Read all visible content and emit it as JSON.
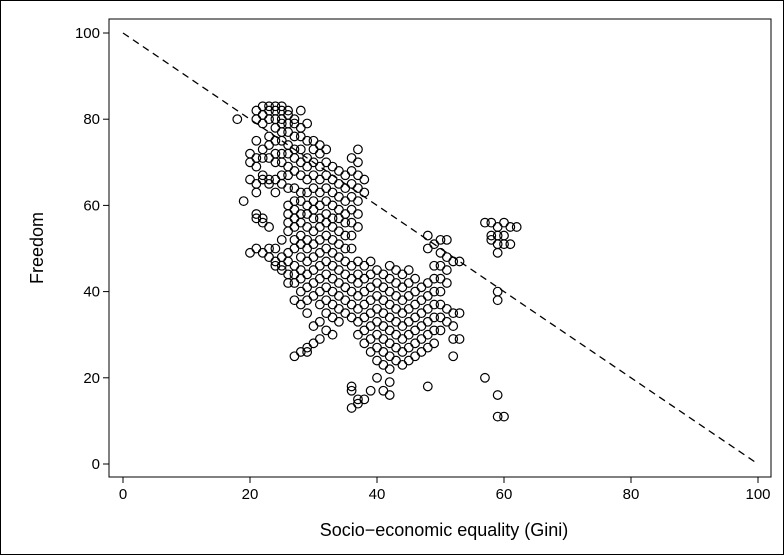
{
  "chart_data": {
    "type": "scatter",
    "title": "",
    "xlabel": "Socio−economic equality (Gini)",
    "ylabel": "Freedom",
    "xlim": [
      0,
      100
    ],
    "ylim": [
      0,
      100
    ],
    "x_ticks": [
      "0",
      "20",
      "40",
      "60",
      "80",
      "100"
    ],
    "y_ticks": [
      "0",
      "20",
      "40",
      "60",
      "80",
      "100"
    ],
    "grid": false,
    "legend": "none",
    "marker": "hollow-circle",
    "colors": {
      "points": "#000000",
      "reference_line": "#000000",
      "background": "#ffffff"
    },
    "reference_line": {
      "style": "dashed",
      "from": [
        0,
        100
      ],
      "to": [
        100,
        0
      ]
    },
    "points": [
      [
        18,
        80
      ],
      [
        19,
        61
      ],
      [
        20,
        72
      ],
      [
        20,
        70
      ],
      [
        20,
        66
      ],
      [
        20,
        49
      ],
      [
        21,
        82
      ],
      [
        21,
        80
      ],
      [
        21,
        75
      ],
      [
        21,
        71
      ],
      [
        21,
        69
      ],
      [
        21,
        65
      ],
      [
        21,
        63
      ],
      [
        21,
        58
      ],
      [
        21,
        57
      ],
      [
        21,
        50
      ],
      [
        22,
        83
      ],
      [
        22,
        81
      ],
      [
        22,
        79
      ],
      [
        22,
        73
      ],
      [
        22,
        71
      ],
      [
        22,
        67
      ],
      [
        22,
        66
      ],
      [
        22,
        57
      ],
      [
        22,
        56
      ],
      [
        22,
        49
      ],
      [
        23,
        83
      ],
      [
        23,
        82
      ],
      [
        23,
        80
      ],
      [
        23,
        76
      ],
      [
        23,
        74
      ],
      [
        23,
        71
      ],
      [
        23,
        66
      ],
      [
        23,
        65
      ],
      [
        23,
        55
      ],
      [
        23,
        50
      ],
      [
        23,
        48
      ],
      [
        24,
        83
      ],
      [
        24,
        82
      ],
      [
        24,
        80
      ],
      [
        24,
        78
      ],
      [
        24,
        75
      ],
      [
        24,
        72
      ],
      [
        24,
        70
      ],
      [
        24,
        66
      ],
      [
        24,
        63
      ],
      [
        24,
        50
      ],
      [
        24,
        47
      ],
      [
        24,
        46
      ],
      [
        25,
        83
      ],
      [
        25,
        82
      ],
      [
        25,
        80
      ],
      [
        25,
        79
      ],
      [
        25,
        77
      ],
      [
        25,
        75
      ],
      [
        25,
        72
      ],
      [
        25,
        70
      ],
      [
        25,
        67
      ],
      [
        25,
        65
      ],
      [
        25,
        52
      ],
      [
        25,
        48
      ],
      [
        25,
        46
      ],
      [
        25,
        45
      ],
      [
        26,
        82
      ],
      [
        26,
        81
      ],
      [
        26,
        79
      ],
      [
        26,
        77
      ],
      [
        26,
        74
      ],
      [
        26,
        72
      ],
      [
        26,
        69
      ],
      [
        26,
        67
      ],
      [
        26,
        64
      ],
      [
        26,
        60
      ],
      [
        26,
        58
      ],
      [
        26,
        56
      ],
      [
        26,
        54
      ],
      [
        26,
        49
      ],
      [
        26,
        47
      ],
      [
        26,
        44
      ],
      [
        26,
        42
      ],
      [
        27,
        80
      ],
      [
        27,
        79
      ],
      [
        27,
        76
      ],
      [
        27,
        73
      ],
      [
        27,
        71
      ],
      [
        27,
        68
      ],
      [
        27,
        64
      ],
      [
        27,
        61
      ],
      [
        27,
        59
      ],
      [
        27,
        57
      ],
      [
        27,
        55
      ],
      [
        27,
        52
      ],
      [
        27,
        50
      ],
      [
        27,
        46
      ],
      [
        27,
        44
      ],
      [
        27,
        42
      ],
      [
        27,
        38
      ],
      [
        27,
        25
      ],
      [
        28,
        82
      ],
      [
        28,
        78
      ],
      [
        28,
        76
      ],
      [
        28,
        73
      ],
      [
        28,
        70
      ],
      [
        28,
        67
      ],
      [
        28,
        63
      ],
      [
        28,
        61
      ],
      [
        28,
        58
      ],
      [
        28,
        56
      ],
      [
        28,
        53
      ],
      [
        28,
        51
      ],
      [
        28,
        48
      ],
      [
        28,
        45
      ],
      [
        28,
        43
      ],
      [
        28,
        40
      ],
      [
        28,
        37
      ],
      [
        28,
        26
      ],
      [
        29,
        79
      ],
      [
        29,
        75
      ],
      [
        29,
        71
      ],
      [
        29,
        69
      ],
      [
        29,
        66
      ],
      [
        29,
        63
      ],
      [
        29,
        60
      ],
      [
        29,
        58
      ],
      [
        29,
        55
      ],
      [
        29,
        52
      ],
      [
        29,
        50
      ],
      [
        29,
        47
      ],
      [
        29,
        44
      ],
      [
        29,
        41
      ],
      [
        29,
        38
      ],
      [
        29,
        35
      ],
      [
        29,
        27
      ],
      [
        29,
        26
      ],
      [
        30,
        75
      ],
      [
        30,
        73
      ],
      [
        30,
        70
      ],
      [
        30,
        67
      ],
      [
        30,
        64
      ],
      [
        30,
        61
      ],
      [
        30,
        59
      ],
      [
        30,
        57
      ],
      [
        30,
        54
      ],
      [
        30,
        51
      ],
      [
        30,
        48
      ],
      [
        30,
        45
      ],
      [
        30,
        42
      ],
      [
        30,
        39
      ],
      [
        30,
        32
      ],
      [
        30,
        28
      ],
      [
        31,
        74
      ],
      [
        31,
        72
      ],
      [
        31,
        69
      ],
      [
        31,
        66
      ],
      [
        31,
        63
      ],
      [
        31,
        60
      ],
      [
        31,
        57
      ],
      [
        31,
        55
      ],
      [
        31,
        52
      ],
      [
        31,
        49
      ],
      [
        31,
        46
      ],
      [
        31,
        43
      ],
      [
        31,
        40
      ],
      [
        31,
        37
      ],
      [
        31,
        33
      ],
      [
        31,
        29
      ],
      [
        32,
        73
      ],
      [
        32,
        70
      ],
      [
        32,
        67
      ],
      [
        32,
        64
      ],
      [
        32,
        61
      ],
      [
        32,
        58
      ],
      [
        32,
        56
      ],
      [
        32,
        53
      ],
      [
        32,
        50
      ],
      [
        32,
        47
      ],
      [
        32,
        44
      ],
      [
        32,
        41
      ],
      [
        32,
        38
      ],
      [
        32,
        35
      ],
      [
        32,
        31
      ],
      [
        33,
        69
      ],
      [
        33,
        66
      ],
      [
        33,
        63
      ],
      [
        33,
        60
      ],
      [
        33,
        57
      ],
      [
        33,
        55
      ],
      [
        33,
        52
      ],
      [
        33,
        49
      ],
      [
        33,
        46
      ],
      [
        33,
        43
      ],
      [
        33,
        40
      ],
      [
        33,
        37
      ],
      [
        33,
        34
      ],
      [
        33,
        30
      ],
      [
        34,
        68
      ],
      [
        34,
        65
      ],
      [
        34,
        62
      ],
      [
        34,
        59
      ],
      [
        34,
        57
      ],
      [
        34,
        54
      ],
      [
        34,
        51
      ],
      [
        34,
        48
      ],
      [
        34,
        45
      ],
      [
        34,
        42
      ],
      [
        34,
        39
      ],
      [
        34,
        36
      ],
      [
        34,
        33
      ],
      [
        35,
        67
      ],
      [
        35,
        64
      ],
      [
        35,
        61
      ],
      [
        35,
        58
      ],
      [
        35,
        56
      ],
      [
        35,
        53
      ],
      [
        35,
        50
      ],
      [
        35,
        47
      ],
      [
        35,
        44
      ],
      [
        35,
        41
      ],
      [
        35,
        38
      ],
      [
        35,
        35
      ],
      [
        36,
        71
      ],
      [
        36,
        68
      ],
      [
        36,
        65
      ],
      [
        36,
        62
      ],
      [
        36,
        59
      ],
      [
        36,
        56
      ],
      [
        36,
        53
      ],
      [
        36,
        50
      ],
      [
        36,
        46
      ],
      [
        36,
        43
      ],
      [
        36,
        40
      ],
      [
        36,
        37
      ],
      [
        36,
        34
      ],
      [
        36,
        18
      ],
      [
        36,
        17
      ],
      [
        36,
        13
      ],
      [
        37,
        73
      ],
      [
        37,
        70
      ],
      [
        37,
        67
      ],
      [
        37,
        64
      ],
      [
        37,
        61
      ],
      [
        37,
        58
      ],
      [
        37,
        55
      ],
      [
        37,
        47
      ],
      [
        37,
        44
      ],
      [
        37,
        42
      ],
      [
        37,
        39
      ],
      [
        37,
        36
      ],
      [
        37,
        33
      ],
      [
        37,
        30
      ],
      [
        37,
        15
      ],
      [
        37,
        14
      ],
      [
        38,
        66
      ],
      [
        38,
        63
      ],
      [
        38,
        46
      ],
      [
        38,
        43
      ],
      [
        38,
        40
      ],
      [
        38,
        37
      ],
      [
        38,
        34
      ],
      [
        38,
        31
      ],
      [
        38,
        28
      ],
      [
        38,
        15
      ],
      [
        39,
        47
      ],
      [
        39,
        44
      ],
      [
        39,
        41
      ],
      [
        39,
        38
      ],
      [
        39,
        35
      ],
      [
        39,
        32
      ],
      [
        39,
        29
      ],
      [
        39,
        26
      ],
      [
        39,
        17
      ],
      [
        40,
        45
      ],
      [
        40,
        42
      ],
      [
        40,
        39
      ],
      [
        40,
        36
      ],
      [
        40,
        33
      ],
      [
        40,
        30
      ],
      [
        40,
        27
      ],
      [
        40,
        24
      ],
      [
        40,
        20
      ],
      [
        41,
        44
      ],
      [
        41,
        41
      ],
      [
        41,
        38
      ],
      [
        41,
        35
      ],
      [
        41,
        32
      ],
      [
        41,
        29
      ],
      [
        41,
        26
      ],
      [
        41,
        23
      ],
      [
        41,
        17
      ],
      [
        42,
        46
      ],
      [
        42,
        43
      ],
      [
        42,
        40
      ],
      [
        42,
        37
      ],
      [
        42,
        34
      ],
      [
        42,
        31
      ],
      [
        42,
        28
      ],
      [
        42,
        25
      ],
      [
        42,
        22
      ],
      [
        42,
        19
      ],
      [
        42,
        16
      ],
      [
        43,
        45
      ],
      [
        43,
        42
      ],
      [
        43,
        39
      ],
      [
        43,
        36
      ],
      [
        43,
        33
      ],
      [
        43,
        30
      ],
      [
        43,
        27
      ],
      [
        43,
        24
      ],
      [
        44,
        44
      ],
      [
        44,
        41
      ],
      [
        44,
        38
      ],
      [
        44,
        35
      ],
      [
        44,
        32
      ],
      [
        44,
        29
      ],
      [
        44,
        26
      ],
      [
        44,
        23
      ],
      [
        45,
        45
      ],
      [
        45,
        42
      ],
      [
        45,
        39
      ],
      [
        45,
        36
      ],
      [
        45,
        33
      ],
      [
        45,
        30
      ],
      [
        45,
        27
      ],
      [
        45,
        24
      ],
      [
        46,
        43
      ],
      [
        46,
        40
      ],
      [
        46,
        37
      ],
      [
        46,
        34
      ],
      [
        46,
        31
      ],
      [
        46,
        28
      ],
      [
        46,
        25
      ],
      [
        47,
        41
      ],
      [
        47,
        38
      ],
      [
        47,
        35
      ],
      [
        47,
        32
      ],
      [
        47,
        29
      ],
      [
        47,
        26
      ],
      [
        48,
        53
      ],
      [
        48,
        50
      ],
      [
        48,
        42
      ],
      [
        48,
        39
      ],
      [
        48,
        36
      ],
      [
        48,
        33
      ],
      [
        48,
        30
      ],
      [
        48,
        27
      ],
      [
        48,
        18
      ],
      [
        49,
        51
      ],
      [
        49,
        46
      ],
      [
        49,
        43
      ],
      [
        49,
        40
      ],
      [
        49,
        37
      ],
      [
        49,
        34
      ],
      [
        49,
        31
      ],
      [
        49,
        28
      ],
      [
        50,
        52
      ],
      [
        50,
        49
      ],
      [
        50,
        46
      ],
      [
        50,
        43
      ],
      [
        50,
        40
      ],
      [
        50,
        37
      ],
      [
        50,
        34
      ],
      [
        50,
        31
      ],
      [
        51,
        52
      ],
      [
        51,
        48
      ],
      [
        51,
        45
      ],
      [
        51,
        42
      ],
      [
        51,
        36
      ],
      [
        51,
        33
      ],
      [
        52,
        47
      ],
      [
        52,
        35
      ],
      [
        52,
        32
      ],
      [
        52,
        29
      ],
      [
        52,
        25
      ],
      [
        53,
        47
      ],
      [
        53,
        35
      ],
      [
        53,
        29
      ],
      [
        57,
        56
      ],
      [
        57,
        20
      ],
      [
        58,
        53
      ],
      [
        58,
        56
      ],
      [
        58,
        52
      ],
      [
        59,
        55
      ],
      [
        59,
        53
      ],
      [
        59,
        51
      ],
      [
        59,
        49
      ],
      [
        59,
        40
      ],
      [
        59,
        38
      ],
      [
        59,
        16
      ],
      [
        59,
        11
      ],
      [
        60,
        56
      ],
      [
        60,
        53
      ],
      [
        60,
        51
      ],
      [
        60,
        11
      ],
      [
        61,
        55
      ],
      [
        61,
        51
      ],
      [
        62,
        55
      ]
    ]
  }
}
